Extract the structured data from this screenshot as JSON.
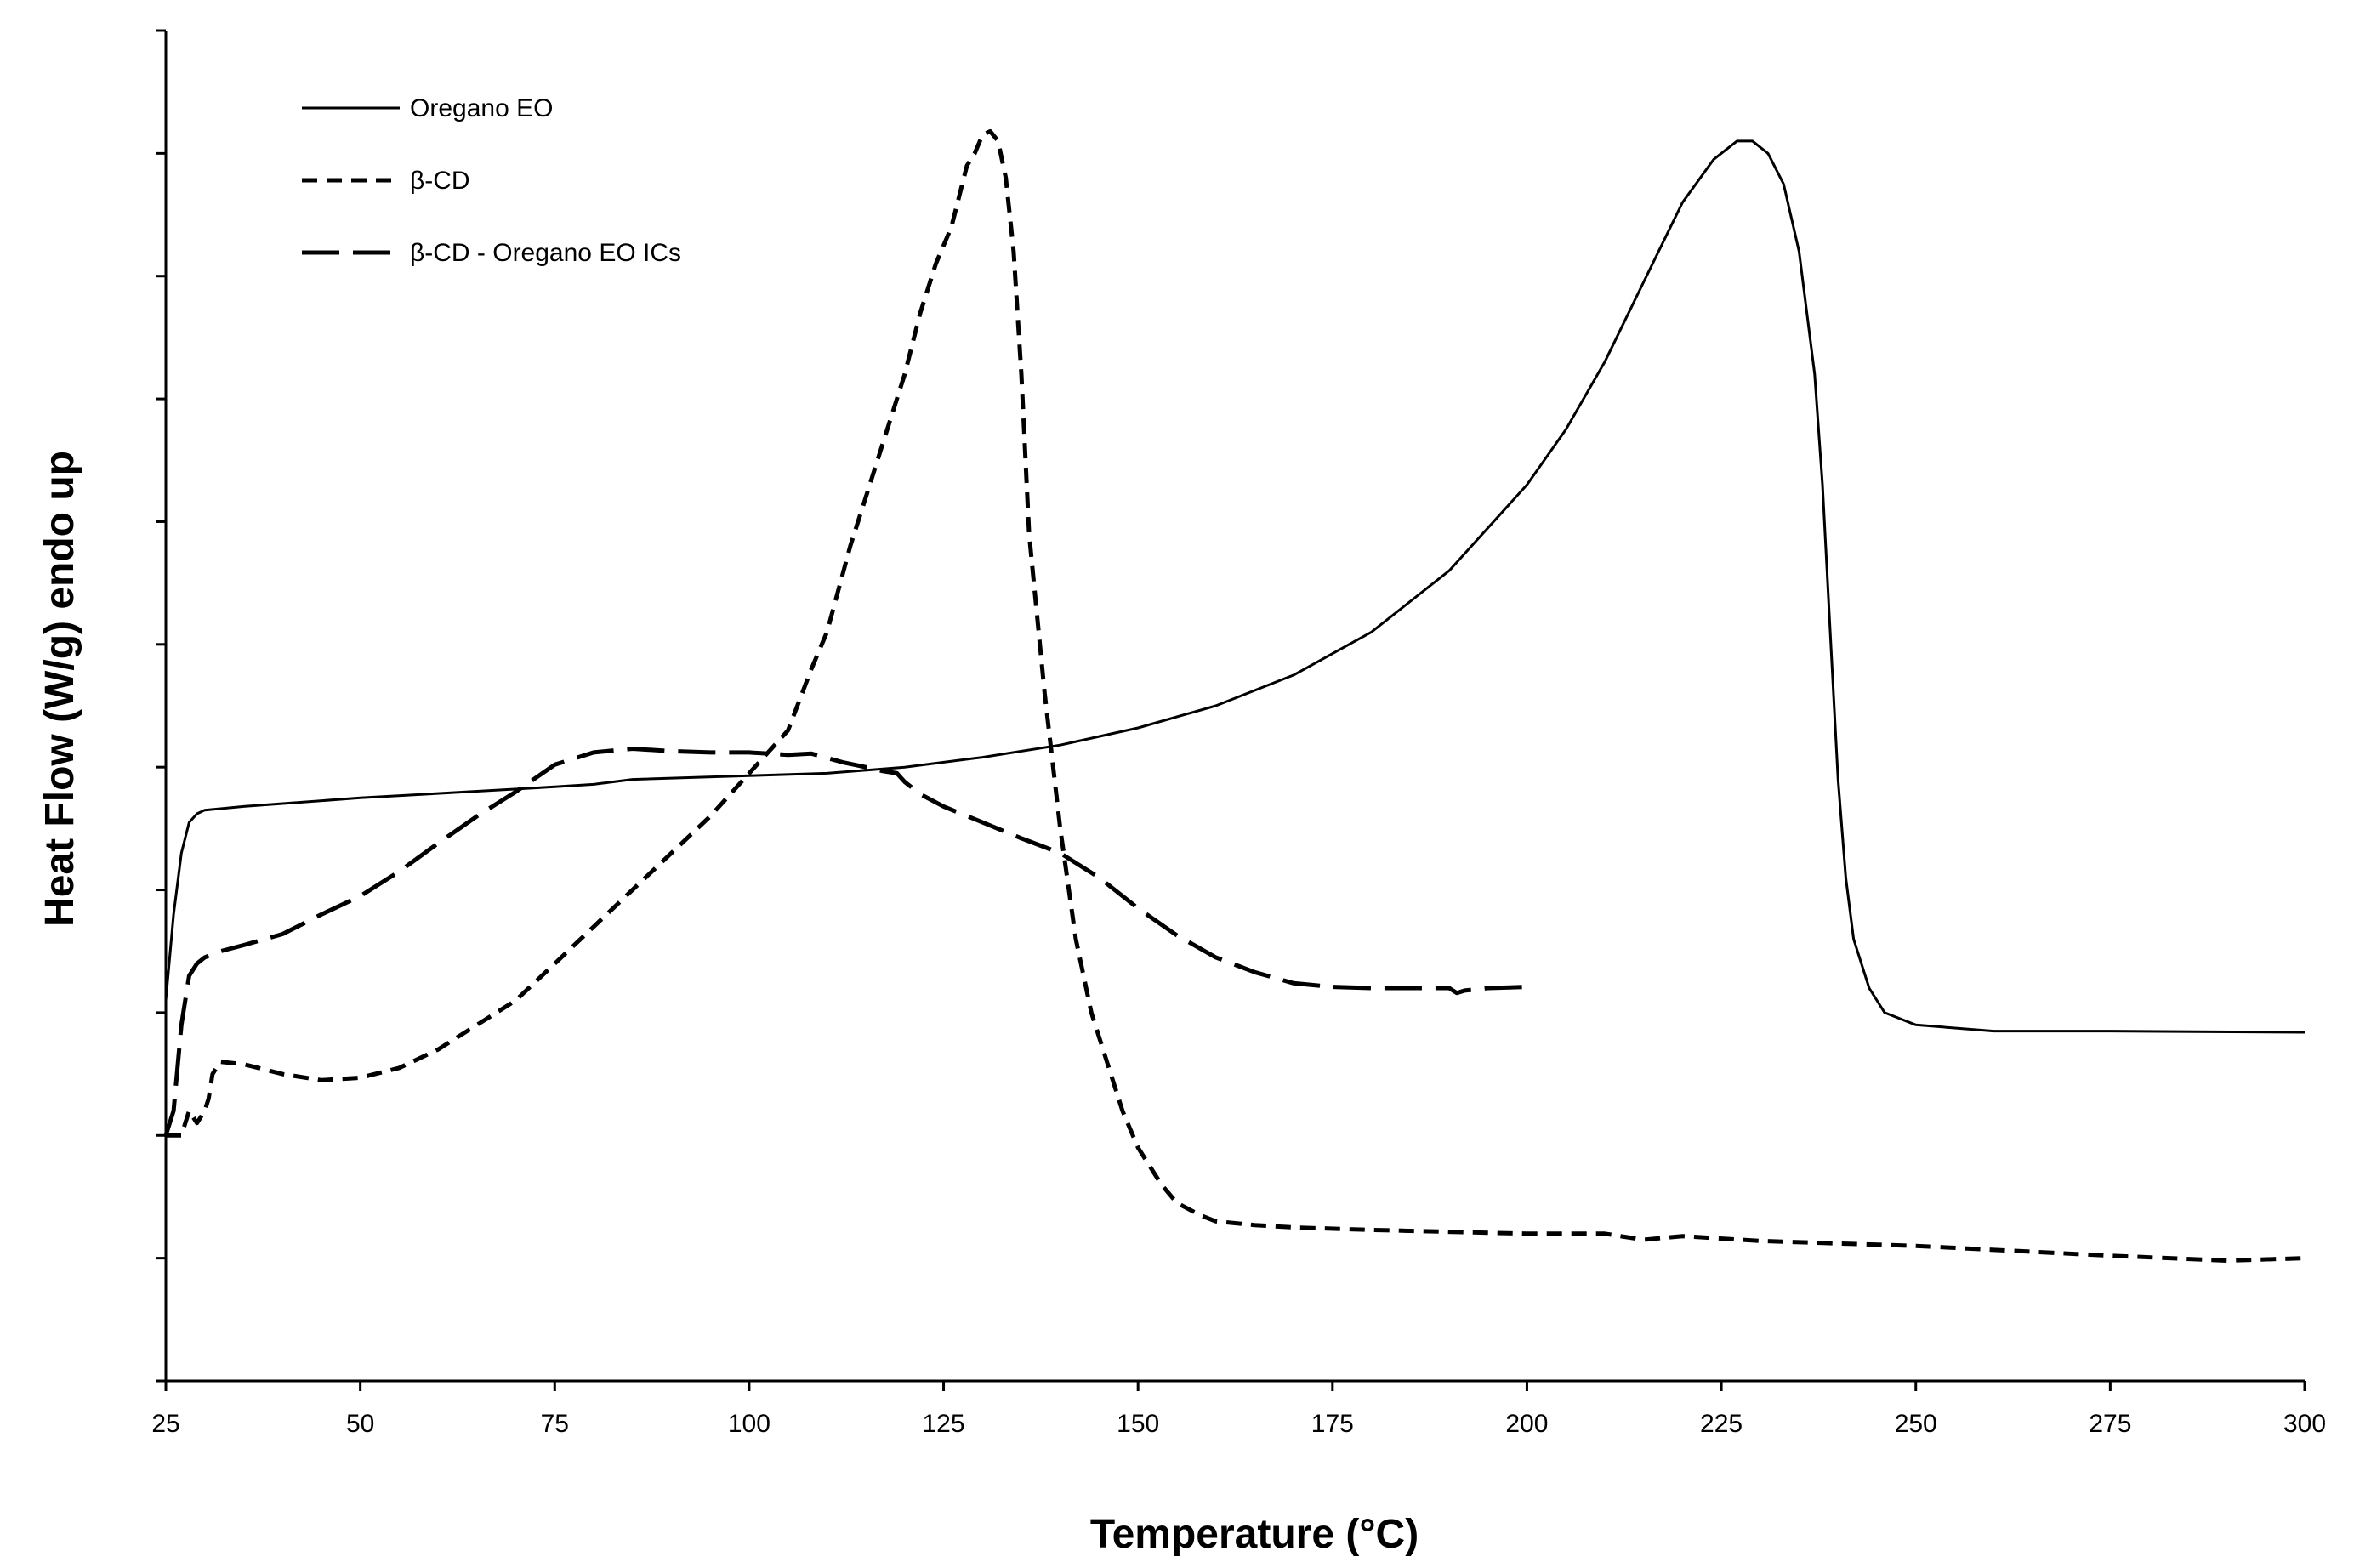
{
  "chart_data": {
    "type": "line",
    "title": "",
    "xlabel": "Temperature (°C)",
    "ylabel": "Heat Flow (W/g) endo up",
    "xlim": [
      25,
      300
    ],
    "ylim": [
      0,
      11
    ],
    "x_ticks": [
      25,
      50,
      75,
      100,
      125,
      150,
      175,
      200,
      225,
      250,
      275,
      300
    ],
    "y_tick_count": 11,
    "y_tick_labels_shown": false,
    "grid": false,
    "legend_position": "top-left",
    "series": [
      {
        "name": "Oregano EO",
        "line_style": "solid",
        "color": "#000000",
        "x": [
          25,
          26,
          27,
          28,
          29,
          30,
          35,
          50,
          75,
          80,
          85,
          100,
          110,
          120,
          130,
          140,
          150,
          160,
          170,
          180,
          190,
          200,
          205,
          210,
          215,
          220,
          224,
          227,
          229,
          231,
          233,
          235,
          237,
          238,
          239,
          240,
          241,
          242,
          244,
          246,
          250,
          260,
          275,
          300
        ],
        "y": [
          3.1,
          3.8,
          4.3,
          4.55,
          4.62,
          4.65,
          4.68,
          4.75,
          4.84,
          4.86,
          4.9,
          4.93,
          4.95,
          5.0,
          5.08,
          5.18,
          5.32,
          5.5,
          5.75,
          6.1,
          6.6,
          7.3,
          7.75,
          8.3,
          8.95,
          9.6,
          9.95,
          10.1,
          10.1,
          10.0,
          9.75,
          9.2,
          8.2,
          7.3,
          6.1,
          4.9,
          4.1,
          3.6,
          3.2,
          3.0,
          2.9,
          2.85,
          2.85,
          2.84
        ],
        "label_for_legend": "Oregano EO"
      },
      {
        "name": "β-CD",
        "line_style": "dashed",
        "color": "#000000",
        "x": [
          25,
          27,
          28,
          29,
          30,
          30.5,
          31,
          32,
          35,
          40,
          45,
          50,
          55,
          60,
          65,
          70,
          75,
          80,
          85,
          90,
          95,
          100,
          105,
          108,
          110,
          113,
          115,
          118,
          120,
          122,
          124,
          126,
          128,
          129,
          130,
          131,
          132,
          133,
          134,
          135,
          136,
          138,
          140,
          142,
          144,
          146,
          148,
          150,
          153,
          155,
          158,
          160,
          165,
          170,
          180,
          200,
          210,
          215,
          220,
          230,
          250,
          275,
          290,
          300
        ],
        "y": [
          2.0,
          2.0,
          2.2,
          2.1,
          2.2,
          2.3,
          2.5,
          2.6,
          2.58,
          2.5,
          2.45,
          2.47,
          2.55,
          2.7,
          2.9,
          3.1,
          3.4,
          3.7,
          4.0,
          4.3,
          4.6,
          4.95,
          5.3,
          5.8,
          6.1,
          6.8,
          7.2,
          7.8,
          8.2,
          8.7,
          9.1,
          9.4,
          9.9,
          10.0,
          10.15,
          10.18,
          10.1,
          9.8,
          9.2,
          8.2,
          6.9,
          5.6,
          4.5,
          3.6,
          3.0,
          2.6,
          2.2,
          1.9,
          1.6,
          1.45,
          1.35,
          1.3,
          1.27,
          1.25,
          1.23,
          1.2,
          1.2,
          1.15,
          1.18,
          1.14,
          1.1,
          1.02,
          0.98,
          1.0
        ],
        "label_for_legend": "β-CD"
      },
      {
        "name": "β-CD - Oregano EO ICs",
        "line_style": "long-dashed",
        "color": "#000000",
        "x": [
          25,
          26,
          27,
          28,
          29,
          30,
          32,
          35,
          40,
          45,
          50,
          55,
          60,
          65,
          70,
          75,
          80,
          85,
          90,
          95,
          100,
          105,
          108,
          112,
          115,
          117,
          119,
          120,
          122,
          125,
          130,
          135,
          140,
          143,
          145,
          150,
          155,
          160,
          165,
          170,
          175,
          180,
          185,
          190,
          191,
          192,
          195,
          200
        ],
        "y": [
          2.0,
          2.2,
          2.9,
          3.3,
          3.4,
          3.45,
          3.5,
          3.55,
          3.64,
          3.8,
          3.95,
          4.15,
          4.38,
          4.6,
          4.8,
          5.02,
          5.12,
          5.15,
          5.13,
          5.12,
          5.12,
          5.1,
          5.11,
          5.04,
          5.0,
          4.97,
          4.95,
          4.88,
          4.78,
          4.68,
          4.55,
          4.42,
          4.3,
          4.18,
          4.1,
          3.85,
          3.63,
          3.45,
          3.33,
          3.24,
          3.21,
          3.2,
          3.2,
          3.2,
          3.16,
          3.18,
          3.2,
          3.21
        ],
        "label_for_legend": "β-CD - Oregano EO ICs"
      }
    ]
  }
}
